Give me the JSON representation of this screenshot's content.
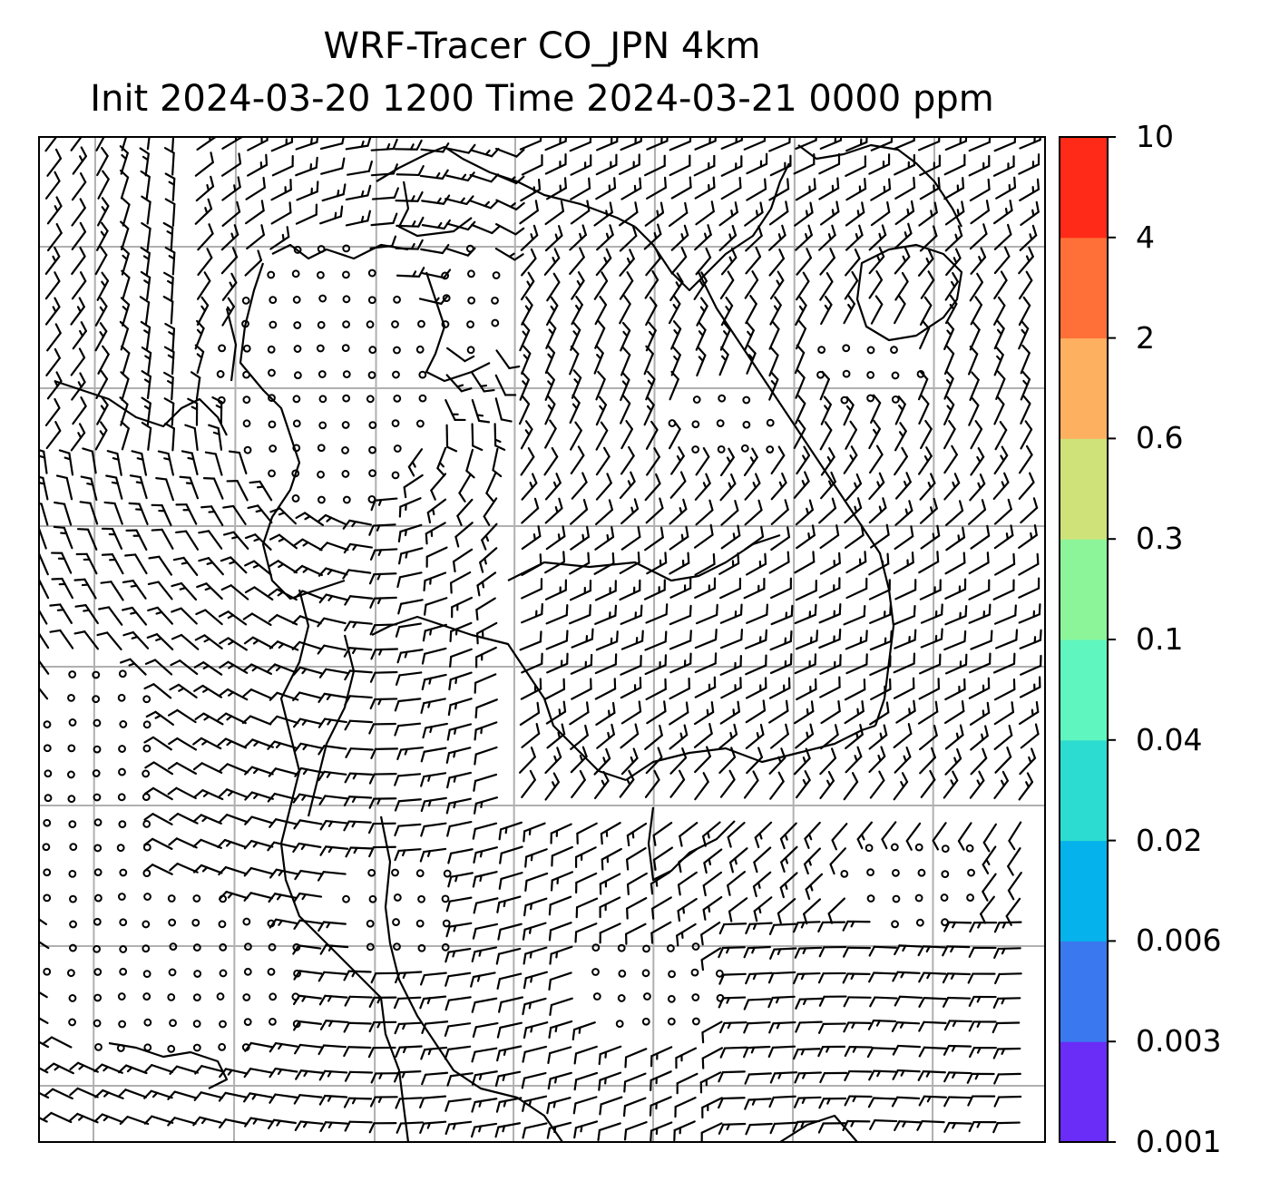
{
  "title": {
    "line1": "WRF-Tracer CO_JPN 4km",
    "line2": "Init 2024-03-20 1200 Time 2024-03-21 0000 ppm"
  },
  "colorbar": {
    "levels": [
      "0.001",
      "0.003",
      "0.006",
      "0.02",
      "0.04",
      "0.1",
      "0.3",
      "0.6",
      "2",
      "4",
      "10"
    ],
    "colors": [
      "#6a2cf7",
      "#3a78f0",
      "#05b2ec",
      "#2cdcd0",
      "#60f6c0",
      "#8cf59a",
      "#cfe27a",
      "#fdb060",
      "#ff7038",
      "#ff2a18"
    ]
  },
  "map": {
    "gridlines": true,
    "coastline_color": "#000000",
    "grid_color": "#b0b0b0",
    "barb_color": "#000000",
    "fill_levels_shown": "none"
  }
}
